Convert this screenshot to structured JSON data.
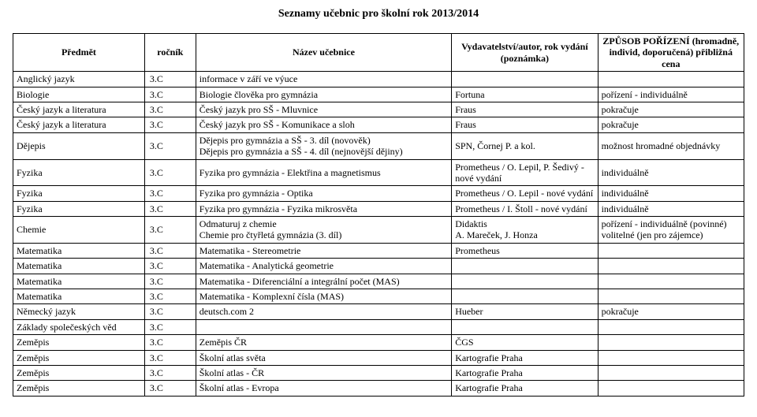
{
  "title": "Seznamy učebnic pro školní rok 2013/2014",
  "headers": {
    "subject": "Předmět",
    "grade": "ročník",
    "book": "Název učebnice",
    "publisher": "Vydavatelství/autor, rok vydání (poznámka)",
    "acquisition": "ZPŮSOB POŘÍZENÍ (hromadně, individ, doporučená) přibližná cena"
  },
  "rows": [
    {
      "subject": "Anglický jazyk",
      "grade": "3.C",
      "book": "informace v září ve výuce",
      "publisher": "",
      "acq": ""
    },
    {
      "subject": "Biologie",
      "grade": "3.C",
      "book": "Biologie člověka pro gymnázia",
      "publisher": "Fortuna",
      "acq": "pořízení - individuálně"
    },
    {
      "subject": "Český jazyk a literatura",
      "grade": "3.C",
      "book": "Český jazyk pro SŠ - Mluvnice",
      "publisher": "Fraus",
      "acq": "pokračuje"
    },
    {
      "subject": "Český jazyk a literatura",
      "grade": "3.C",
      "book": "Český jazyk pro SŠ - Komunikace a sloh",
      "publisher": "Fraus",
      "acq": "pokračuje"
    },
    {
      "subject": "Dějepis",
      "grade": "3.C",
      "book": "Dějepis pro gymnázia a SŠ - 3. díl (novověk)\nDějepis pro gymnázia a SŠ - 4. díl (nejnovější dějiny)",
      "publisher": "SPN, Čornej P. a kol.",
      "acq": "možnost hromadné objednávky"
    },
    {
      "subject": "Fyzika",
      "grade": "3.C",
      "book": "Fyzika pro gymnázia - Elektřina a magnetismus",
      "publisher": "Prometheus / O. Lepil, P. Šedivý  - nové vydání",
      "acq": "individuálně"
    },
    {
      "subject": "Fyzika",
      "grade": "3.C",
      "book": "Fyzika pro gymnázia - Optika",
      "publisher": "Prometheus / O. Lepil - nové vydání",
      "acq": "individuálně"
    },
    {
      "subject": "Fyzika",
      "grade": "3.C",
      "book": "Fyzika pro gymnázia - Fyzika mikrosvěta",
      "publisher": "Prometheus / I. Štoll - nové vydání",
      "acq": "individuálně"
    },
    {
      "subject": "Chemie",
      "grade": "3.C",
      "book": "Odmaturuj z chemie\nChemie pro čtyřletá gymnázia (3. díl)",
      "publisher": "Didaktis\nA. Mareček, J. Honza",
      "acq": "pořízení - individuálně (povinné)\nvolitelné (jen pro zájemce)"
    },
    {
      "subject": "Matematika",
      "grade": "3.C",
      "book": "Matematika - Stereometrie",
      "publisher": "Prometheus",
      "acq": ""
    },
    {
      "subject": "Matematika",
      "grade": "3.C",
      "book": "Matematika - Analytická geometrie",
      "publisher": "",
      "acq": ""
    },
    {
      "subject": "Matematika",
      "grade": "3.C",
      "book": "Matematika - Diferenciální a integrální počet (MAS)",
      "publisher": "",
      "acq": ""
    },
    {
      "subject": "Matematika",
      "grade": "3.C",
      "book": "Matematika - Komplexní čísla (MAS)",
      "publisher": "",
      "acq": ""
    },
    {
      "subject": "Německý jazyk",
      "grade": "3.C",
      "book": "deutsch.com 2",
      "publisher": "Hueber",
      "acq": "pokračuje"
    },
    {
      "subject": "Základy společeských věd",
      "grade": "3.C",
      "book": "",
      "publisher": "",
      "acq": ""
    },
    {
      "subject": "Zeměpis",
      "grade": "3.C",
      "book": "Zeměpis ČR",
      "publisher": "ČGS",
      "acq": ""
    },
    {
      "subject": "Zeměpis",
      "grade": "3.C",
      "book": "Školní atlas světa",
      "publisher": "Kartografie Praha",
      "acq": ""
    },
    {
      "subject": "Zeměpis",
      "grade": "3.C",
      "book": "Školní atlas - ČR",
      "publisher": "Kartografie Praha",
      "acq": ""
    },
    {
      "subject": "Zeměpis",
      "grade": "3.C",
      "book": "Školní atlas - Evropa",
      "publisher": "Kartografie Praha",
      "acq": ""
    }
  ]
}
